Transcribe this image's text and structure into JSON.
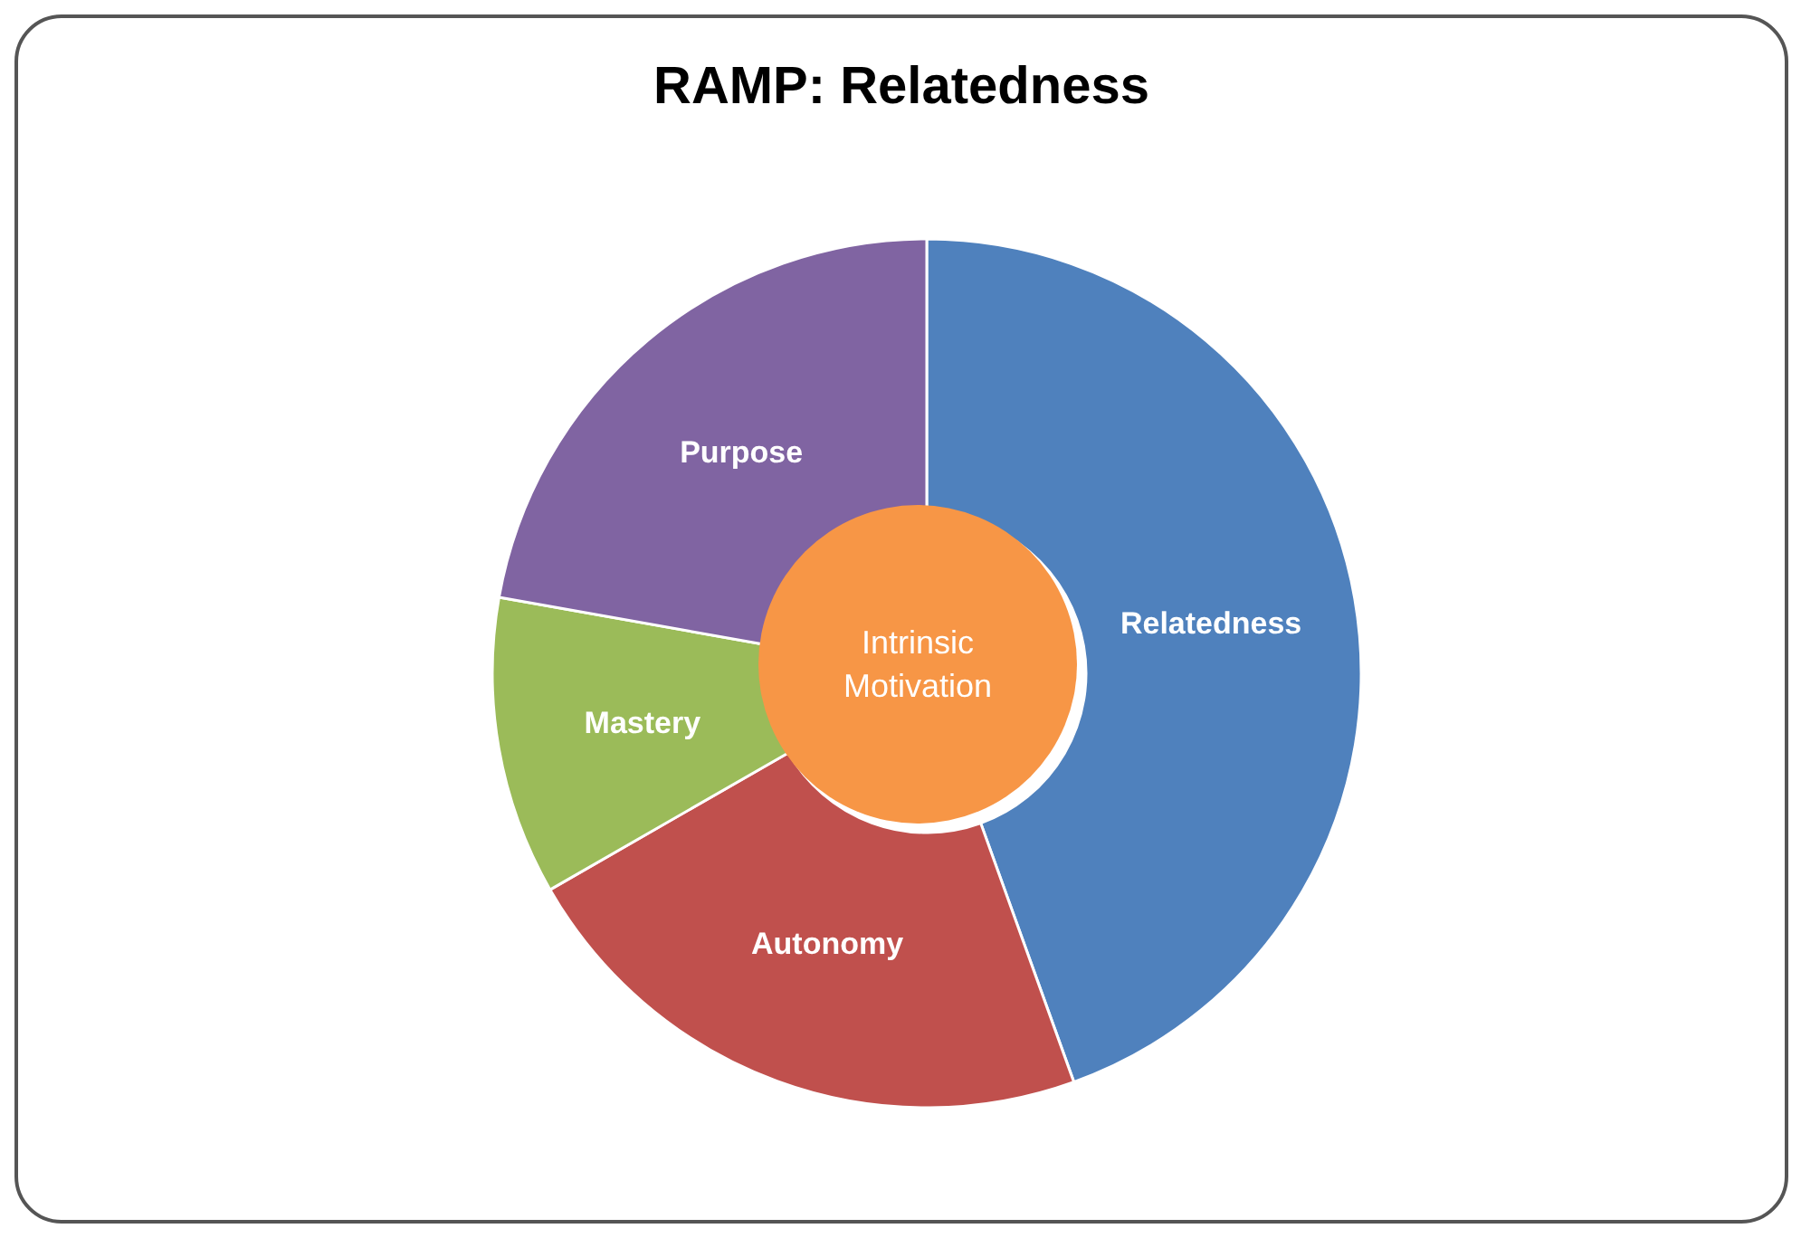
{
  "chart_data": {
    "type": "donut",
    "title": "RAMP: Relatedness",
    "categories": [
      "Relatedness",
      "Autonomy",
      "Mastery",
      "Purpose"
    ],
    "values": [
      44.5,
      22.2,
      11.1,
      22.2
    ],
    "colors": [
      "#4f81bd",
      "#c0504d",
      "#9bbb59",
      "#8064a2"
    ],
    "annotations": [
      "Intrinsic Motivation"
    ],
    "legend": false
  }
}
